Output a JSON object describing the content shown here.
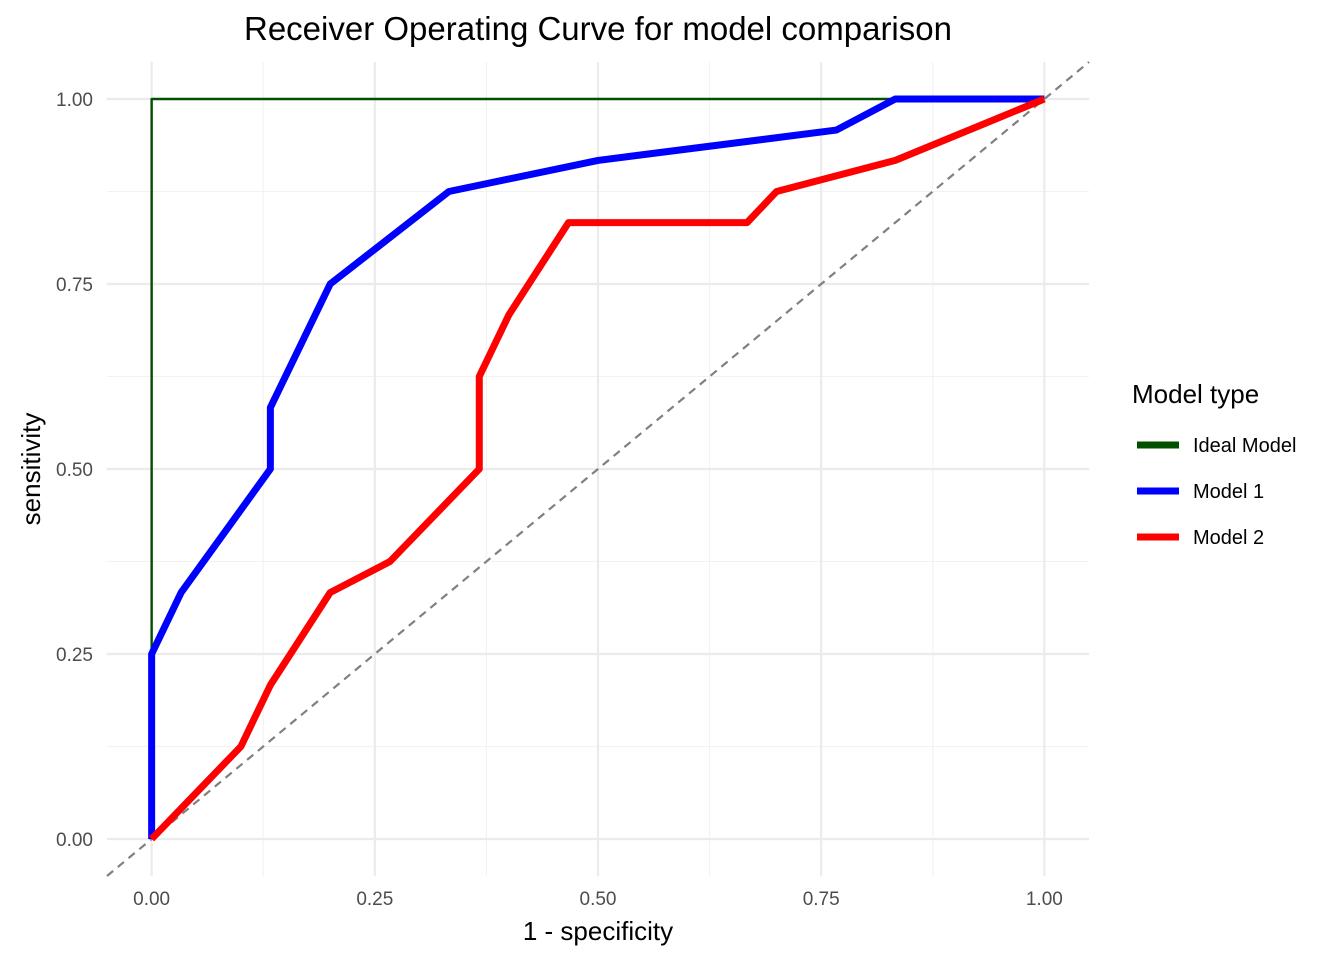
{
  "chart_data": {
    "type": "line",
    "title": "Receiver Operating Curve for model comparison",
    "xlabel": "1 - specificity",
    "ylabel": "sensitivity",
    "xlim": [
      -0.05,
      1.05
    ],
    "ylim": [
      -0.05,
      1.05
    ],
    "x_ticks": [
      0,
      0.25,
      0.5,
      0.75,
      1
    ],
    "y_ticks": [
      0,
      0.25,
      0.5,
      0.75,
      1
    ],
    "x_tick_labels": [
      "0.00",
      "0.25",
      "0.50",
      "0.75",
      "1.00"
    ],
    "y_tick_labels": [
      "0.00",
      "0.25",
      "0.50",
      "0.75",
      "1.00"
    ],
    "grid": true,
    "legend": {
      "title": "Model type",
      "position": "right"
    },
    "reference_line": {
      "type": "diagonal",
      "style": "dashed",
      "color": "#808080",
      "x": [
        -0.05,
        1.05
      ],
      "y": [
        -0.05,
        1.05
      ]
    },
    "series": [
      {
        "name": "Ideal Model",
        "color": "#005000",
        "weight": "thin",
        "x": [
          0,
          0,
          1
        ],
        "y": [
          0,
          1,
          1
        ]
      },
      {
        "name": "Model 1",
        "color": "#0000FF",
        "weight": "thick",
        "x": [
          0,
          0,
          0.033,
          0.133,
          0.133,
          0.2,
          0.333,
          0.5,
          0.767,
          0.833,
          1
        ],
        "y": [
          0,
          0.25,
          0.333,
          0.5,
          0.583,
          0.75,
          0.875,
          0.917,
          0.958,
          1,
          1
        ]
      },
      {
        "name": "Model 2",
        "color": "#FF0000",
        "weight": "thick",
        "x": [
          0,
          0.1,
          0.133,
          0.2,
          0.267,
          0.367,
          0.367,
          0.4,
          0.467,
          0.667,
          0.7,
          0.833,
          1
        ],
        "y": [
          0,
          0.125,
          0.208,
          0.333,
          0.375,
          0.5,
          0.625,
          0.708,
          0.833,
          0.833,
          0.875,
          0.917,
          1
        ]
      }
    ]
  }
}
